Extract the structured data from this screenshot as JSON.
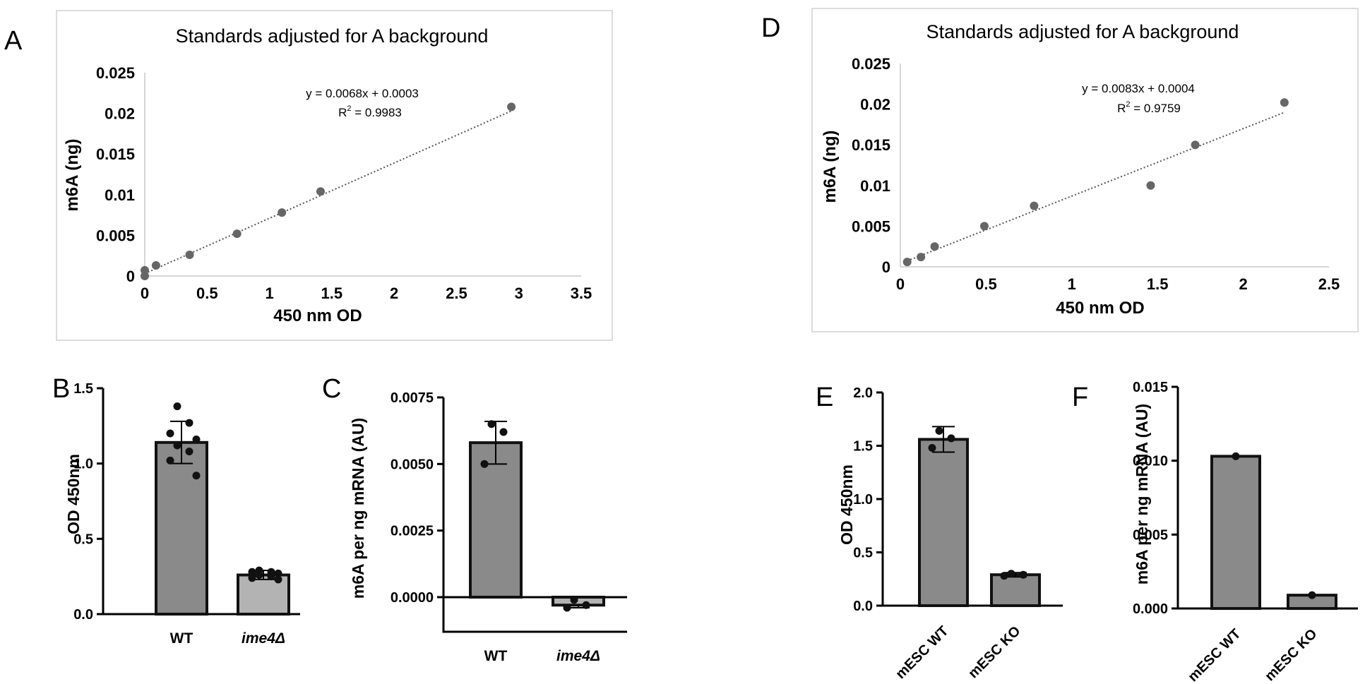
{
  "panel_labels": {
    "a": "A",
    "b": "B",
    "c": "C",
    "d": "D",
    "e": "E",
    "f": "F"
  },
  "colors": {
    "bar_dark": "#8a8a8a",
    "bar_light": "#b3b3b3",
    "point": "#666666",
    "axis": "#000000",
    "frame": "#d0d0d0"
  },
  "chart_data": [
    {
      "id": "A",
      "type": "scatter",
      "title": "Standards adjusted for A background",
      "xlabel": "450 nm OD",
      "ylabel": "m6A (ng)",
      "xlim": [
        0,
        3.5
      ],
      "ylim": [
        0,
        0.025
      ],
      "xticks": [
        0,
        0.5,
        1,
        1.5,
        2,
        2.5,
        3,
        3.5
      ],
      "xtick_labels": [
        "0",
        "0.5",
        "1",
        "1.5",
        "2",
        "2.5",
        "3",
        "3.5"
      ],
      "yticks": [
        0,
        0.005,
        0.01,
        0.015,
        0.02,
        0.025
      ],
      "ytick_labels": [
        "0",
        "0.005",
        "0.01",
        "0.015",
        "0.02",
        "0.025"
      ],
      "x": [
        0,
        0,
        0.09,
        0.36,
        0.74,
        1.1,
        1.41,
        2.94
      ],
      "y": [
        0,
        0.0007,
        0.0013,
        0.0026,
        0.0052,
        0.0078,
        0.0104,
        0.0208
      ],
      "trendline": {
        "slope": 0.0068,
        "intercept": 0.0003,
        "x_range": [
          0,
          2.94
        ]
      },
      "equation": "y = 0.0068x + 0.0003",
      "r2_label": "R",
      "r2_exp": "2",
      "r2_value": " = 0.9983",
      "grid": false
    },
    {
      "id": "D",
      "type": "scatter",
      "title": "Standards adjusted for A background",
      "xlabel": "450 nm OD",
      "ylabel": "m6A (ng)",
      "xlim": [
        0,
        2.5
      ],
      "ylim": [
        0,
        0.025
      ],
      "xticks": [
        0,
        0.5,
        1,
        1.5,
        2,
        2.5
      ],
      "xtick_labels": [
        "0",
        "0.5",
        "1",
        "1.5",
        "2",
        "2.5"
      ],
      "yticks": [
        0,
        0.005,
        0.01,
        0.015,
        0.02,
        0.025
      ],
      "ytick_labels": [
        "0",
        "0.005",
        "0.01",
        "0.015",
        "0.02",
        "0.025"
      ],
      "x": [
        0.04,
        0.12,
        0.2,
        0.49,
        0.78,
        1.46,
        1.72,
        2.24
      ],
      "y": [
        0.0006,
        0.0012,
        0.0025,
        0.005,
        0.0075,
        0.01,
        0.015,
        0.0202
      ],
      "trendline": {
        "slope": 0.0083,
        "intercept": 0.0004,
        "x_range": [
          0.04,
          2.24
        ]
      },
      "equation": "y = 0.0083x + 0.0004",
      "r2_label": "R",
      "r2_exp": "2",
      "r2_value": " = 0.9759",
      "grid": false
    },
    {
      "id": "B",
      "type": "bar",
      "ylabel": "OD 450nm",
      "ylim": [
        0,
        1.5
      ],
      "yticks": [
        0,
        0.5,
        1,
        1.5
      ],
      "ytick_labels": [
        "0.0",
        "0.5",
        "1.0",
        "1.5"
      ],
      "categories": [
        "WT",
        "ime4Δ"
      ],
      "values": [
        1.14,
        0.26
      ],
      "errors": [
        0.14,
        0.03
      ],
      "bar_colors": [
        "#8a8a8a",
        "#b3b3b3"
      ],
      "points": [
        [
          1.38,
          1.27,
          1.2,
          1.16,
          1.12,
          1.08,
          1.02,
          0.92
        ],
        [
          0.29,
          0.28,
          0.28,
          0.27,
          0.26,
          0.25,
          0.24,
          0.23
        ]
      ],
      "grid": false
    },
    {
      "id": "C",
      "type": "bar",
      "ylabel": "m6A per ng mRNA (AU)",
      "ylim": [
        -0.0013,
        0.0075
      ],
      "yticks": [
        0,
        0.0025,
        0.005,
        0.0075
      ],
      "ytick_labels": [
        "0.0000",
        "0.0025",
        "0.0050",
        "0.0075"
      ],
      "categories": [
        "WT",
        "ime4Δ"
      ],
      "values": [
        0.0058,
        -0.0003
      ],
      "errors": [
        0.0008,
        0.0001
      ],
      "bar_colors": [
        "#8a8a8a",
        "#b3b3b3"
      ],
      "points": [
        [
          0.0065,
          0.0062,
          0.005
        ],
        [
          -0.0001,
          -0.0003,
          -0.0004
        ]
      ],
      "grid": false
    },
    {
      "id": "E",
      "type": "bar",
      "ylabel": "OD 450nm",
      "ylim": [
        0,
        2.0
      ],
      "yticks": [
        0,
        0.5,
        1,
        1.5,
        2
      ],
      "ytick_labels": [
        "0.0",
        "0.5",
        "1.0",
        "1.5",
        "2.0"
      ],
      "categories": [
        "mESC WT",
        "mESC KO"
      ],
      "values": [
        1.56,
        0.29
      ],
      "errors": [
        0.12,
        0.02
      ],
      "bar_colors": [
        "#8a8a8a",
        "#8a8a8a"
      ],
      "points": [
        [
          1.64,
          1.57,
          1.48
        ],
        [
          0.3,
          0.29,
          0.28
        ]
      ],
      "grid": false
    },
    {
      "id": "F",
      "type": "bar",
      "ylabel": "m6A per ng mRNA (AU)",
      "ylim": [
        0,
        0.015
      ],
      "yticks": [
        0,
        0.005,
        0.01,
        0.015
      ],
      "ytick_labels": [
        "0.000",
        "0.005",
        "0.010",
        "0.015"
      ],
      "categories": [
        "mESC WT",
        "mESC KO"
      ],
      "values": [
        0.0103,
        0.0009
      ],
      "errors": [
        0,
        0
      ],
      "bar_colors": [
        "#8a8a8a",
        "#8a8a8a"
      ],
      "points": [
        [
          0.0103
        ],
        [
          0.0009
        ]
      ],
      "grid": false
    }
  ]
}
